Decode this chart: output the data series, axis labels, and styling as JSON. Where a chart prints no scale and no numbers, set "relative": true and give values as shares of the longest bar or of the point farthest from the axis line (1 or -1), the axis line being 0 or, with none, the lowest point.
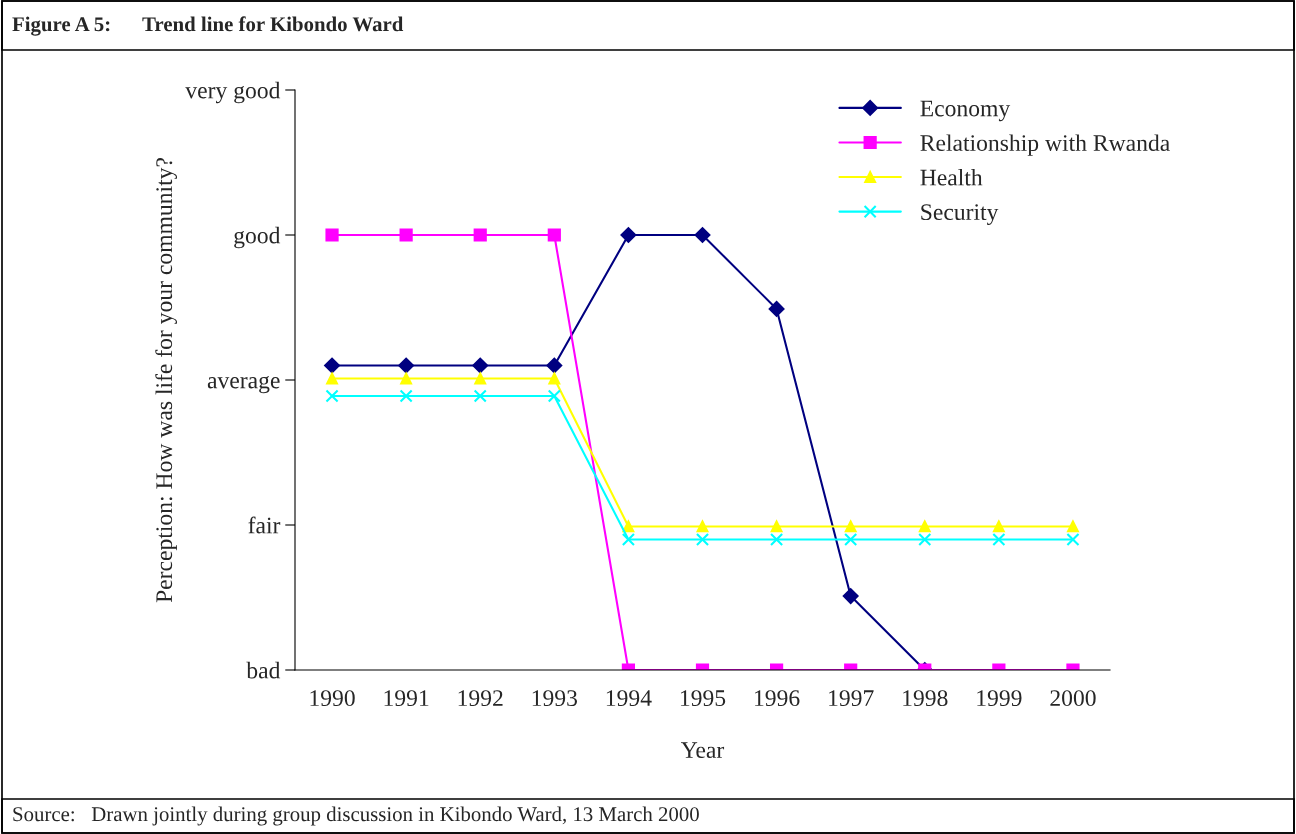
{
  "chart_data": {
    "type": "line",
    "title": "Figure A 5:      Trend line for Kibondo Ward",
    "xlabel": "Year",
    "ylabel": "Perception: How was life for your community?",
    "categories": [
      "1990",
      "1991",
      "1992",
      "1993",
      "1994",
      "1995",
      "1996",
      "1997",
      "1998",
      "1999",
      "2000"
    ],
    "relative": true,
    "series": [
      {
        "name": "Economy",
        "color": "#000080",
        "marker": "diamond",
        "values": [
          0.7,
          0.7,
          0.7,
          0.7,
          1,
          1,
          0.83,
          0.17,
          0,
          null,
          null
        ]
      },
      {
        "name": "Relationship with Rwanda",
        "color": "#ff00ff",
        "marker": "square",
        "values": [
          1,
          1,
          1,
          1,
          0,
          0,
          0,
          0,
          0,
          0,
          0
        ]
      },
      {
        "name": "Health",
        "color": "#ffff00",
        "marker": "triangle",
        "values": [
          0.67,
          0.67,
          0.67,
          0.67,
          0.33,
          0.33,
          0.33,
          0.33,
          0.33,
          0.33,
          0.33
        ]
      },
      {
        "name": "Security",
        "color": "#00ffff",
        "marker": "cross",
        "values": [
          0.63,
          0.63,
          0.63,
          0.63,
          0.3,
          0.3,
          0.3,
          0.3,
          0.3,
          0.3,
          0.3
        ]
      }
    ],
    "grid": false,
    "legend": "top right",
    "annotations": [
      "bad",
      "fair",
      "average",
      "good",
      "very good",
      "Source:   Drawn jointly during group discussion in Kibondo Ward, 13 March 2000"
    ]
  }
}
